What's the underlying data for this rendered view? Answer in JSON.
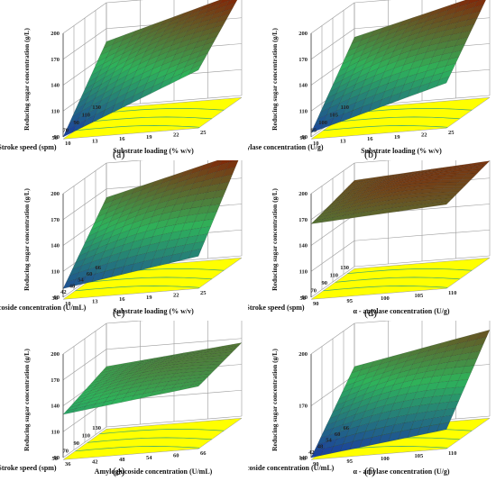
{
  "figure": {
    "panels": [
      {
        "letter": "(a)"
      },
      {
        "letter": "(b)"
      },
      {
        "letter": "(c)"
      },
      {
        "letter": "(d)"
      },
      {
        "letter": "(e)"
      },
      {
        "letter": "(f)"
      }
    ]
  },
  "colors": {
    "contour_plane": "#ffff00",
    "surface_low": "#1a3aa0",
    "surface_mid": "#2eb35a",
    "surface_high": "#8a1a00",
    "grid": "#9a9a9a"
  },
  "chart_data": [
    {
      "type": "surface3d",
      "panel": "(a)",
      "zlabel": "Reducing sugar concentration (g/L)",
      "zticks": [
        "80",
        "110",
        "140",
        "170",
        "200"
      ],
      "zlim": [
        80,
        200
      ],
      "ylabel": "Stroke speed (spm)",
      "yticks": [
        "130",
        "110",
        "90",
        "70",
        "50"
      ],
      "xlabel": "Substrate loading (% w/v)",
      "xticks": [
        "10",
        "13",
        "16",
        "19",
        "22",
        "25"
      ],
      "corner_values": {
        "front_left": 80,
        "front_right": 145,
        "back_left": 155,
        "back_right": 200
      }
    },
    {
      "type": "surface3d",
      "panel": "(b)",
      "zlabel": "Reducing sugar concentration (g/L)",
      "zticks": [
        "80",
        "110",
        "140",
        "170",
        "200"
      ],
      "zlim": [
        80,
        200
      ],
      "ylabel": "α - amylase concentration (U/g)",
      "yticks": [
        "110",
        "105",
        "100",
        "95",
        "90"
      ],
      "xlabel": "Substrate loading (% w/v)",
      "xticks": [
        "10",
        "13",
        "16",
        "19",
        "22",
        "25"
      ],
      "corner_values": {
        "front_left": 85,
        "front_right": 130,
        "back_left": 160,
        "back_right": 200
      }
    },
    {
      "type": "surface3d",
      "panel": "(c)",
      "zlabel": "Reducing sugar concentration (g/L)",
      "zticks": [
        "80",
        "110",
        "140",
        "170",
        "200"
      ],
      "zlim": [
        80,
        200
      ],
      "ylabel": "Amyloglucoside concentration (U/mL)",
      "yticks": [
        "66",
        "60",
        "54",
        "48",
        "42",
        "36"
      ],
      "xlabel": "Substrate loading (% w/v)",
      "xticks": [
        "10",
        "13",
        "16",
        "19",
        "22",
        "25"
      ],
      "corner_values": {
        "front_left": 90,
        "front_right": 115,
        "back_left": 160,
        "back_right": 200
      }
    },
    {
      "type": "surface3d",
      "panel": "(d)",
      "zlabel": "Reducing sugar concentration (g/L)",
      "zticks": [
        "80",
        "110",
        "140",
        "170",
        "200"
      ],
      "zlim": [
        80,
        200
      ],
      "ylabel": "Stroke speed (spm)",
      "yticks": [
        "130",
        "110",
        "90",
        "70",
        "50"
      ],
      "xlabel": "α - amylase concentration (U/g)",
      "xticks": [
        "90",
        "95",
        "100",
        "105",
        "110"
      ],
      "corner_values": {
        "front_left": 165,
        "front_right": 175,
        "back_left": 180,
        "back_right": 190
      }
    },
    {
      "type": "surface3d",
      "panel": "(e)",
      "zlabel": "Reducing sugar concentration (g/L)",
      "zticks": [
        "80",
        "110",
        "140",
        "170",
        "200"
      ],
      "zlim": [
        80,
        200
      ],
      "ylabel": "Stroke speed (spm)",
      "yticks": [
        "130",
        "110",
        "90",
        "70",
        "50"
      ],
      "xlabel": "Amyloglucoside concentration (U/mL)",
      "xticks": [
        "36",
        "42",
        "48",
        "54",
        "60",
        "66"
      ],
      "corner_values": {
        "front_left": 130,
        "front_right": 150,
        "back_left": 150,
        "back_right": 165
      }
    },
    {
      "type": "surface3d",
      "panel": "(f)",
      "zlabel": "Reducing sugar concentration (g/L)",
      "zticks": [
        "140",
        "170",
        "200"
      ],
      "zlim": [
        140,
        200
      ],
      "ylabel": "Amyloglucoside concentration (U/mL)",
      "yticks": [
        "66",
        "60",
        "54",
        "48",
        "42",
        "36"
      ],
      "xlabel": "α - amylase concentration (U/g)",
      "xticks": [
        "90",
        "95",
        "100",
        "105",
        "110"
      ],
      "corner_values": {
        "front_left": 140,
        "front_right": 150,
        "back_left": 175,
        "back_right": 190
      }
    }
  ]
}
